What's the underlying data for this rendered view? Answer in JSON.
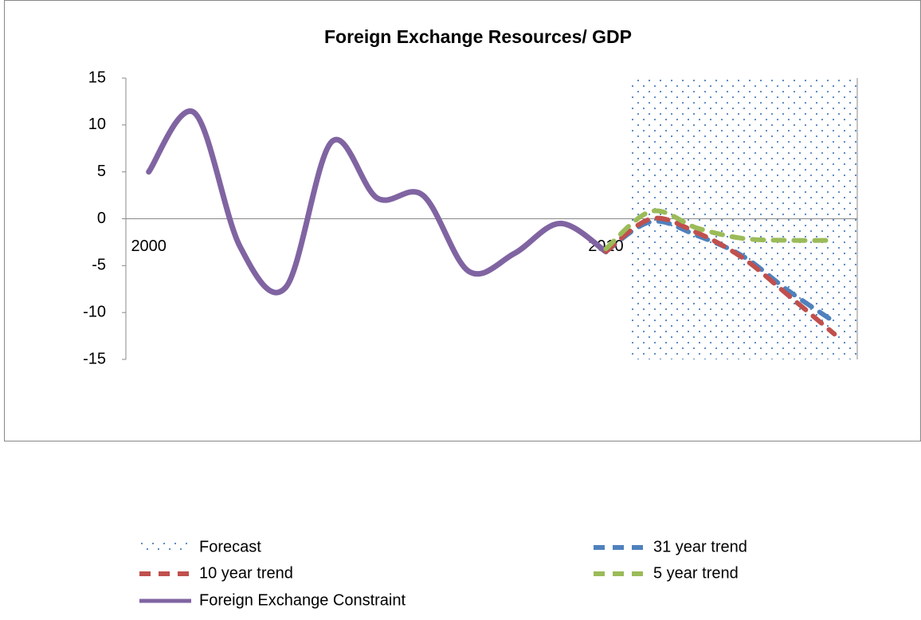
{
  "chart_data": {
    "type": "line",
    "title": "Foreign Exchange Resources/ GDP",
    "categories": [
      "2000",
      null,
      null,
      null,
      null,
      null,
      null,
      null,
      null,
      null,
      "2010",
      null,
      null,
      null,
      null,
      null
    ],
    "ylim": [
      -15,
      15
    ],
    "yticks": [
      -15,
      -10,
      -5,
      0,
      5,
      10,
      15
    ],
    "legend": "bottom",
    "series": [
      {
        "name": "Forecast",
        "type": "area",
        "color": "#4f81bd",
        "values": [
          null,
          null,
          null,
          null,
          null,
          null,
          null,
          null,
          null,
          null,
          null,
          15,
          15,
          15,
          15,
          15
        ]
      },
      {
        "name": "31 year trend",
        "color": "#4f81bd",
        "dashed": true,
        "values": [
          null,
          null,
          null,
          null,
          null,
          null,
          null,
          null,
          null,
          null,
          -3.5,
          -0.3,
          -1.8,
          -4,
          -7.7,
          -11
        ]
      },
      {
        "name": "10 year trend",
        "color": "#c0504d",
        "dashed": true,
        "values": [
          null,
          null,
          null,
          null,
          null,
          null,
          null,
          null,
          null,
          null,
          -3.5,
          0,
          -1.5,
          -4.2,
          -8.2,
          -12.3
        ]
      },
      {
        "name": "5 year trend",
        "color": "#9bbb59",
        "dashed": true,
        "values": [
          null,
          null,
          null,
          null,
          null,
          null,
          null,
          null,
          null,
          null,
          -3.2,
          0.8,
          -1,
          -2.1,
          -2.3,
          -2.3
        ]
      },
      {
        "name": "Foreign Exchange Constraint",
        "color": "#8064a2",
        "values": [
          5,
          11.3,
          -3,
          -7.3,
          8.2,
          2.2,
          2.5,
          -5.6,
          -3.7,
          -0.5,
          -3.5,
          null,
          null,
          null,
          null,
          null
        ]
      }
    ]
  }
}
